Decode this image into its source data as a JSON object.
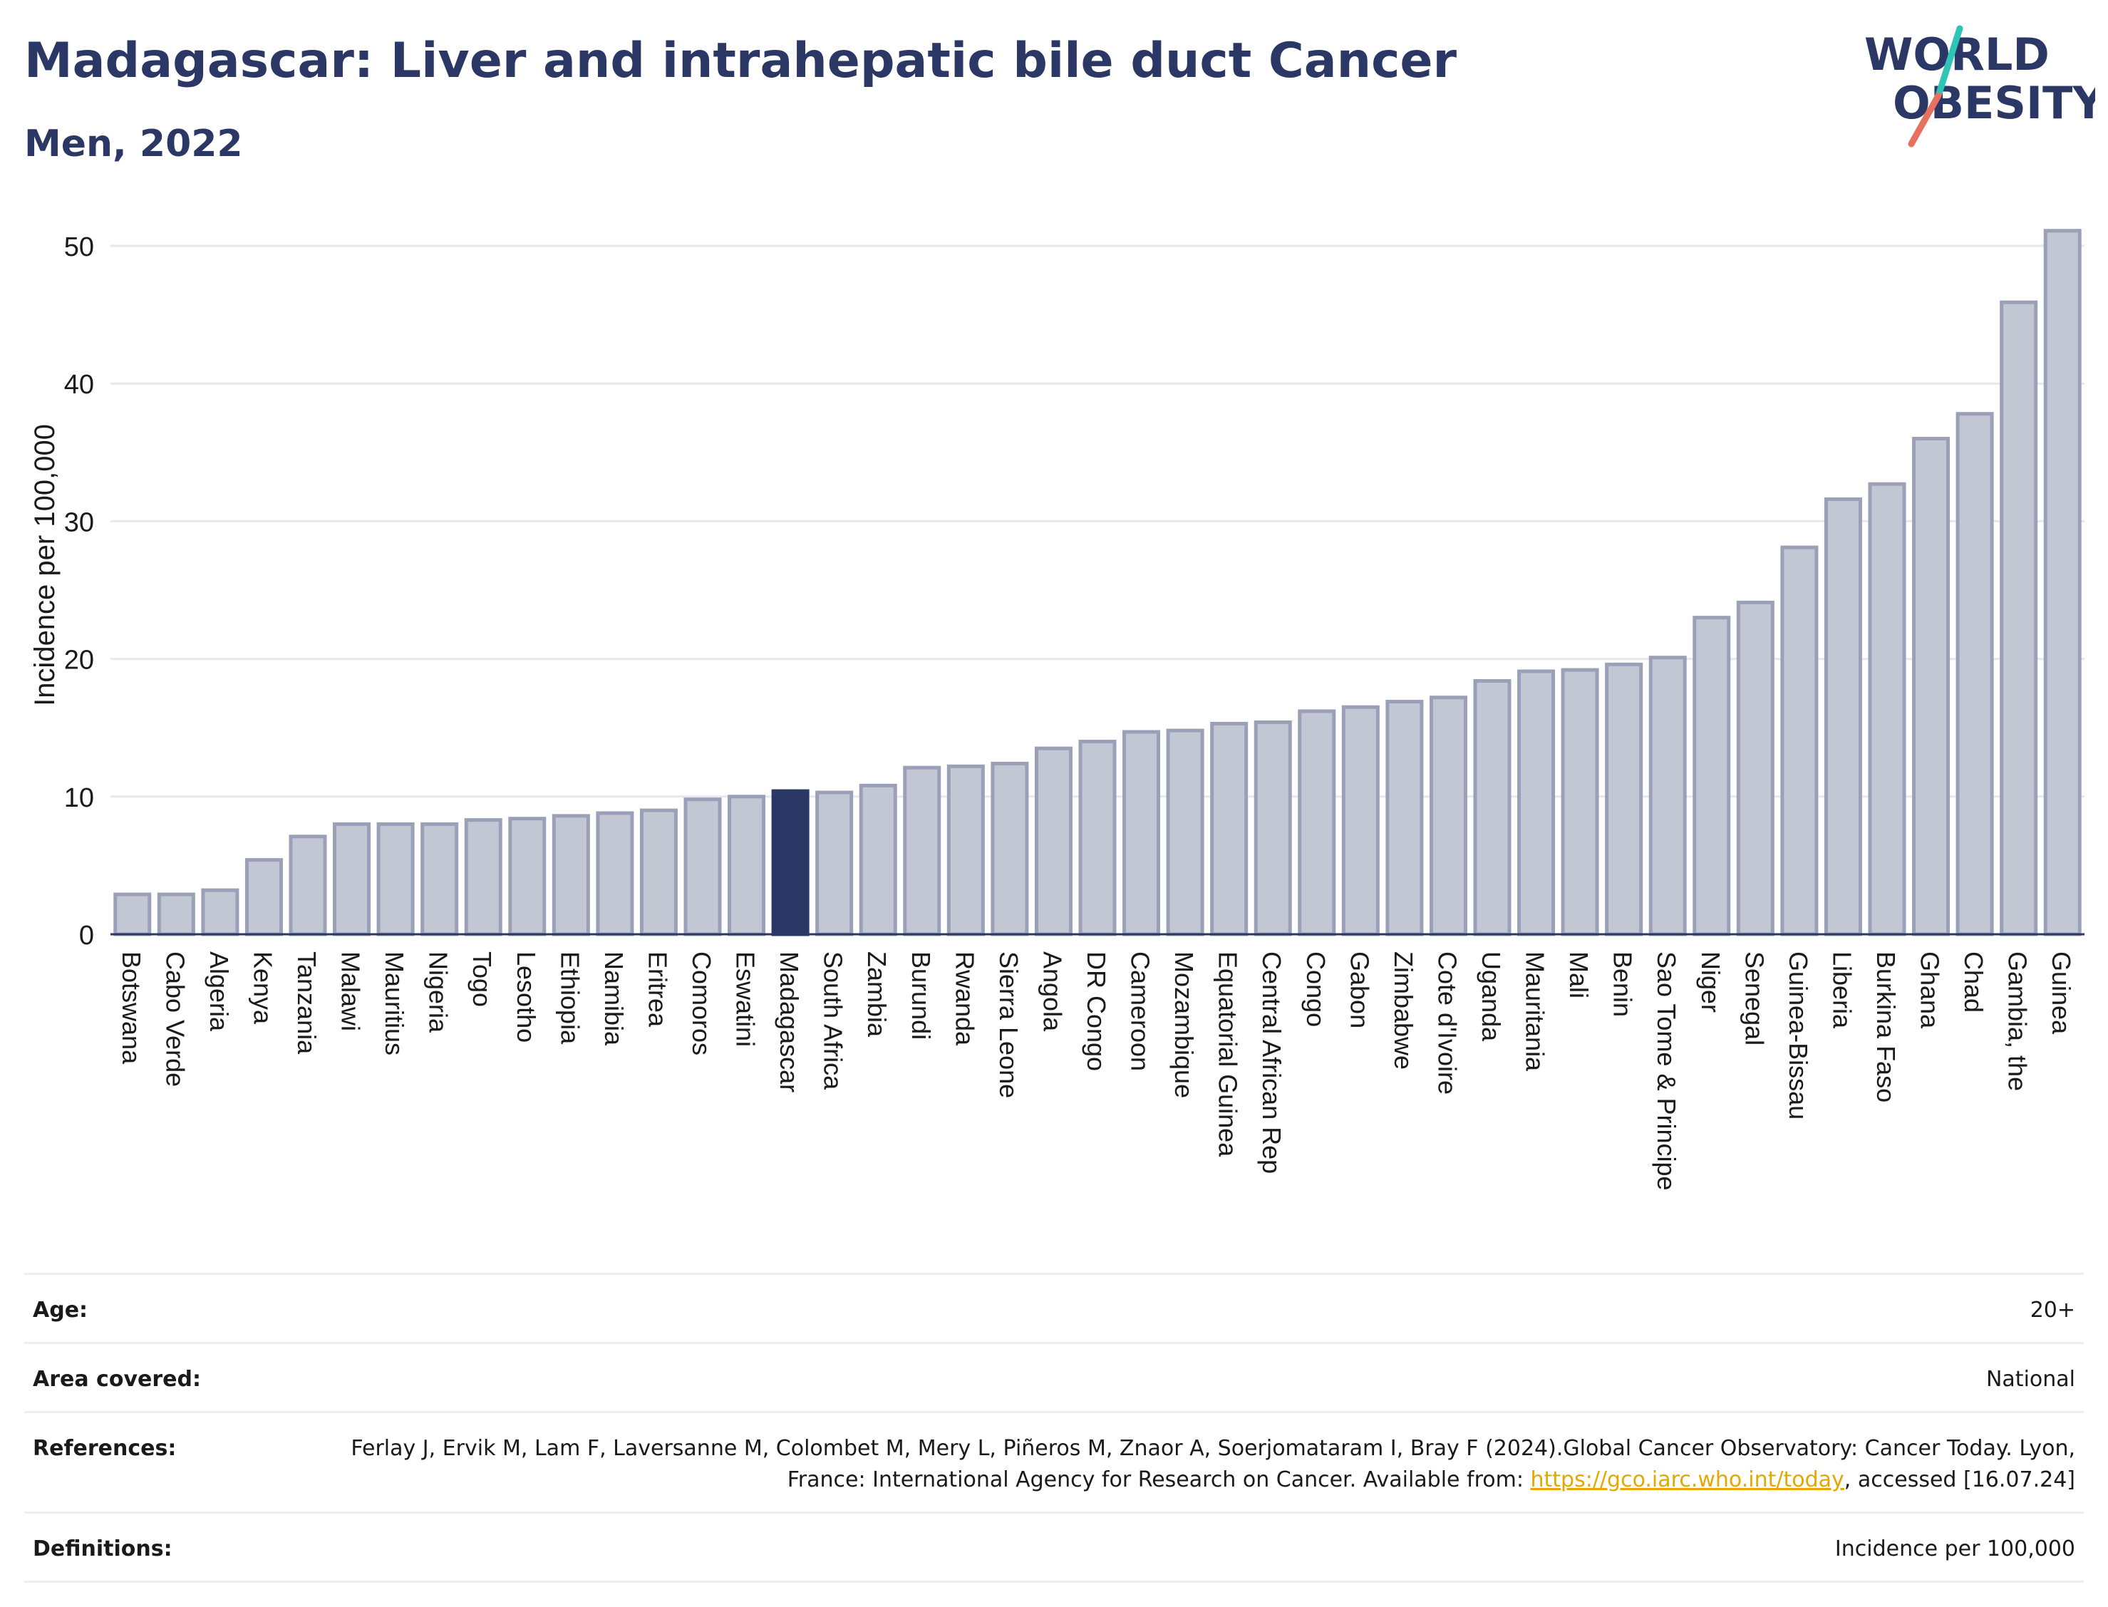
{
  "header": {
    "title": "Madagascar: Liver and intrahepatic bile duct Cancer",
    "subtitle": "Men, 2022"
  },
  "logo": {
    "line1": "WORLD",
    "line2": "OBESITY",
    "accent_teal": "#2ec4b6",
    "accent_red": "#e8705f"
  },
  "colors": {
    "bar": "#c3c6d3",
    "bar_stroke": "#9aa0b8",
    "highlight": "#2b3764",
    "text": "#2b3764"
  },
  "chart_data": {
    "type": "bar",
    "title": "Madagascar: Liver and intrahepatic bile duct Cancer",
    "subtitle": "Men, 2022",
    "xlabel": "",
    "ylabel": "Incidence per 100,000",
    "ylim": [
      0,
      53
    ],
    "yticks": [
      0,
      10,
      20,
      30,
      40,
      50
    ],
    "grid": true,
    "highlight": "Madagascar",
    "categories": [
      "Botswana",
      "Cabo Verde",
      "Algeria",
      "Kenya",
      "Tanzania",
      "Malawi",
      "Mauritius",
      "Nigeria",
      "Togo",
      "Lesotho",
      "Ethiopia",
      "Namibia",
      "Eritrea",
      "Comoros",
      "Eswatini",
      "Madagascar",
      "South Africa",
      "Zambia",
      "Burundi",
      "Rwanda",
      "Sierra Leone",
      "Angola",
      "DR Congo",
      "Cameroon",
      "Mozambique",
      "Equatorial Guinea",
      "Central African Rep",
      "Congo",
      "Gabon",
      "Zimbabwe",
      "Cote d'Ivoire",
      "Uganda",
      "Mauritania",
      "Mali",
      "Benin",
      "Sao Tome & Principe",
      "Niger",
      "Senegal",
      "Guinea-Bissau",
      "Liberia",
      "Burkina Faso",
      "Ghana",
      "Chad",
      "Gambia, the",
      "Guinea"
    ],
    "values": [
      2.9,
      2.9,
      3.2,
      5.4,
      7.1,
      8.0,
      8.0,
      8.0,
      8.3,
      8.4,
      8.6,
      8.8,
      9.0,
      9.8,
      10.0,
      10.4,
      10.3,
      10.8,
      12.1,
      12.2,
      12.4,
      13.5,
      14.0,
      14.7,
      14.8,
      15.3,
      15.4,
      16.2,
      16.5,
      16.9,
      17.2,
      18.4,
      19.1,
      19.2,
      19.6,
      20.1,
      23.0,
      24.1,
      28.1,
      31.6,
      32.7,
      36.0,
      37.8,
      45.9,
      51.1
    ]
  },
  "meta": [
    {
      "label": "Age:",
      "value": "20+"
    },
    {
      "label": "Area covered:",
      "value": "National"
    },
    {
      "label": "References:",
      "value_pre": "Ferlay J, Ervik M, Lam F, Laversanne M, Colombet M, Mery L, Piñeros M, Znaor A, Soerjomataram I, Bray F (2024).Global Cancer Observatory: Cancer Today. Lyon, France: International Agency for Research on Cancer. Available from: ",
      "link": "https://gco.iarc.who.int/today",
      "value_post": ", accessed [16.07.24]"
    },
    {
      "label": "Definitions:",
      "value": "Incidence per 100,000"
    }
  ]
}
